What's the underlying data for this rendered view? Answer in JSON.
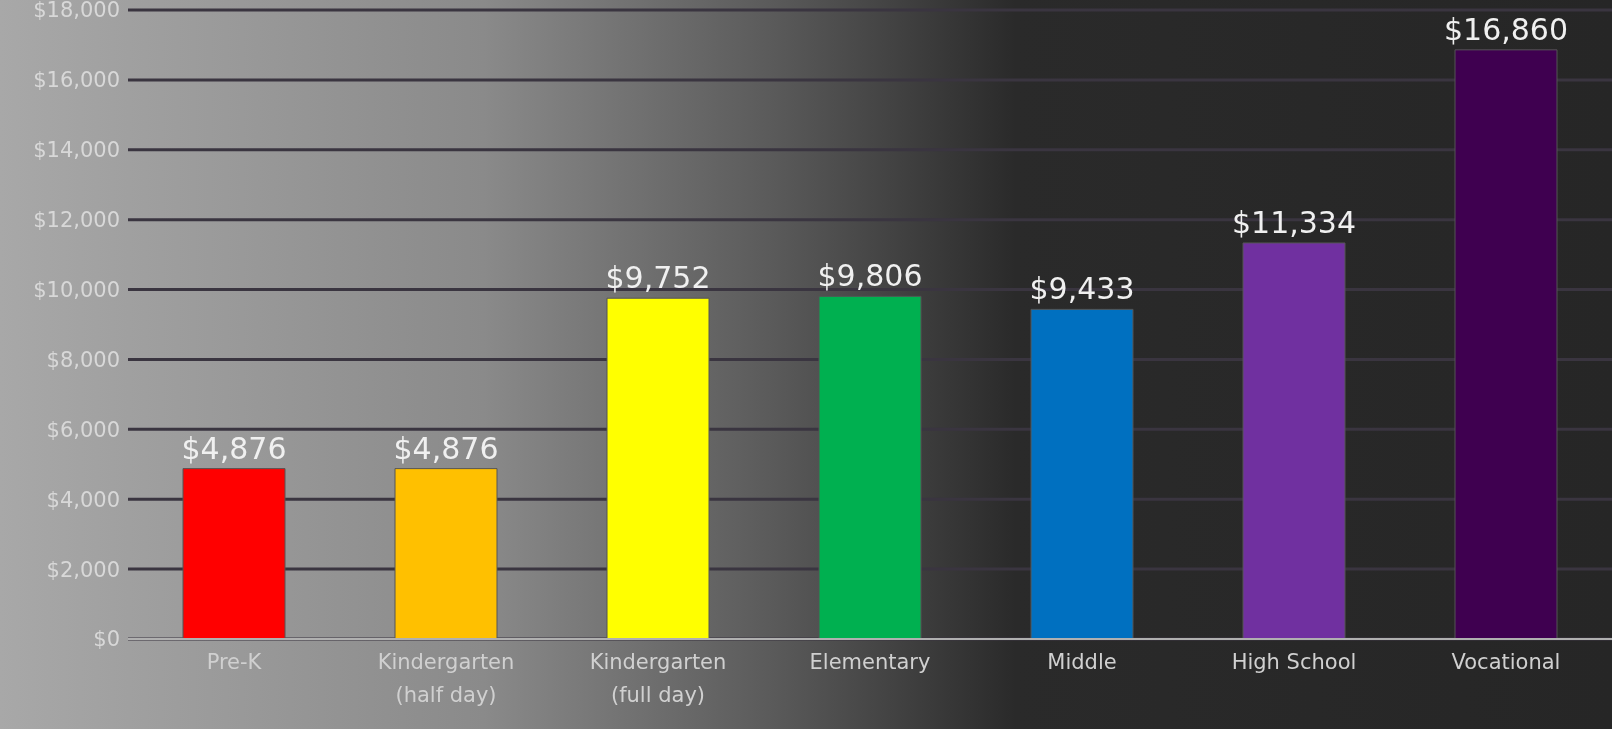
{
  "chart_data": {
    "type": "bar",
    "categories": [
      "Pre-K",
      "Kindergarten (half day)",
      "Kindergarten (full day)",
      "Elementary",
      "Middle",
      "High School",
      "Vocational"
    ],
    "values": [
      4876,
      4876,
      9752,
      9806,
      9433,
      11334,
      16860
    ],
    "colors": [
      "#ff0000",
      "#ffc000",
      "#ffff00",
      "#00b050",
      "#0070c0",
      "#7030a0",
      "#3f0050"
    ],
    "value_labels": [
      "$4,876",
      "$4,876",
      "$9,752",
      "$9,806",
      "$9,433",
      "$11,334",
      "$16,860"
    ],
    "ylim": [
      0,
      18000
    ],
    "yticks": [
      {
        "value": 0,
        "label": "$0"
      },
      {
        "value": 2000,
        "label": "$2,000"
      },
      {
        "value": 4000,
        "label": "$4,000"
      },
      {
        "value": 6000,
        "label": "$6,000"
      },
      {
        "value": 8000,
        "label": "$8,000"
      },
      {
        "value": 10000,
        "label": "$10,000"
      },
      {
        "value": 12000,
        "label": "$12,000"
      },
      {
        "value": 14000,
        "label": "$14,000"
      },
      {
        "value": 16000,
        "label": "$16,000"
      },
      {
        "value": 18000,
        "label": "$18,000"
      }
    ],
    "grid": "y"
  }
}
